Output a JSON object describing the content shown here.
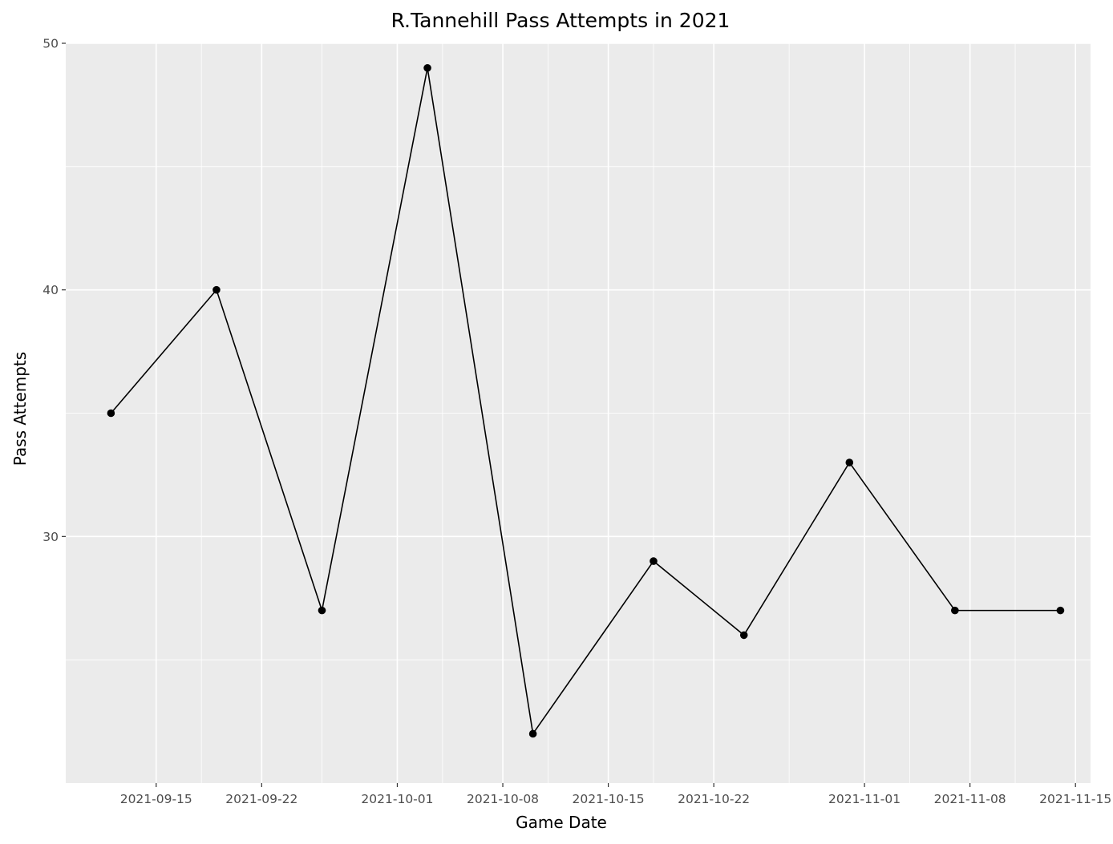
{
  "chart_data": {
    "type": "line",
    "title": "R.Tannehill Pass Attempts in 2021",
    "xlabel": "Game Date",
    "ylabel": "Pass Attempts",
    "x_type": "date",
    "xlim": [
      "2021-09-09",
      "2021-11-16"
    ],
    "ylim": [
      20,
      50
    ],
    "x_ticks": [
      "2021-09-15",
      "2021-09-22",
      "2021-10-01",
      "2021-10-08",
      "2021-10-15",
      "2021-10-22",
      "2021-11-01",
      "2021-11-08",
      "2021-11-15"
    ],
    "y_ticks": [
      30,
      40,
      50
    ],
    "grid": true,
    "legend": "none",
    "colors": {
      "panel": "#ebebeb",
      "grid": "#ffffff",
      "line": "#000000",
      "point": "#000000",
      "tick_text": "#4d4d4d"
    },
    "series": [
      {
        "points": [
          {
            "x": "2021-09-12",
            "y": 35
          },
          {
            "x": "2021-09-19",
            "y": 40
          },
          {
            "x": "2021-09-26",
            "y": 27
          },
          {
            "x": "2021-10-03",
            "y": 49
          },
          {
            "x": "2021-10-10",
            "y": 22
          },
          {
            "x": "2021-10-18",
            "y": 29
          },
          {
            "x": "2021-10-24",
            "y": 26
          },
          {
            "x": "2021-10-31",
            "y": 33
          },
          {
            "x": "2021-11-07",
            "y": 27
          },
          {
            "x": "2021-11-14",
            "y": 27
          }
        ]
      }
    ]
  }
}
